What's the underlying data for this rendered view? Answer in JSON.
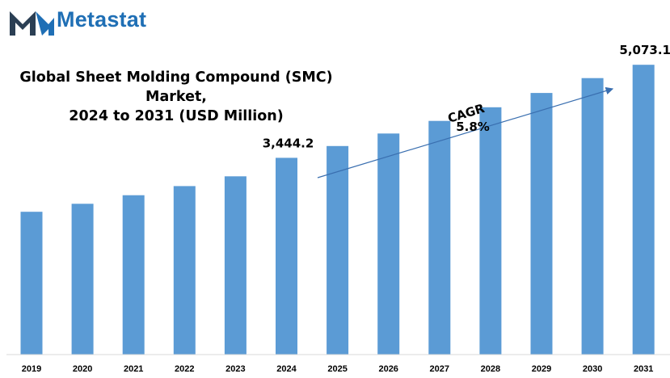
{
  "brand": {
    "name": "Metastat"
  },
  "colors": {
    "bar": "#5b9bd5",
    "brand": "#1f6fb5",
    "brand_dark": "#2b3f54",
    "arrow": "#3a6fb0"
  },
  "chart_data": {
    "type": "bar",
    "title_line1": "Global Sheet Molding Compound (SMC) Market,",
    "title_line2": "2024 to 2031 (USD Million)",
    "categories": [
      "2019",
      "2020",
      "2021",
      "2022",
      "2023",
      "2024",
      "2025",
      "2026",
      "2027",
      "2028",
      "2029",
      "2030",
      "2031"
    ],
    "values": [
      2500,
      2640,
      2790,
      2950,
      3120,
      3444.2,
      3650,
      3870,
      4090,
      4330,
      4580,
      4840,
      5073.1
    ],
    "ylim": [
      0,
      5500
    ],
    "data_labels": [
      {
        "category": "2024",
        "text": "3,444.2"
      },
      {
        "category": "2031",
        "text": "5,073.1"
      }
    ],
    "annotation": {
      "label": "CAGR",
      "value": "5.8%"
    },
    "grid": false,
    "legend": "none"
  }
}
